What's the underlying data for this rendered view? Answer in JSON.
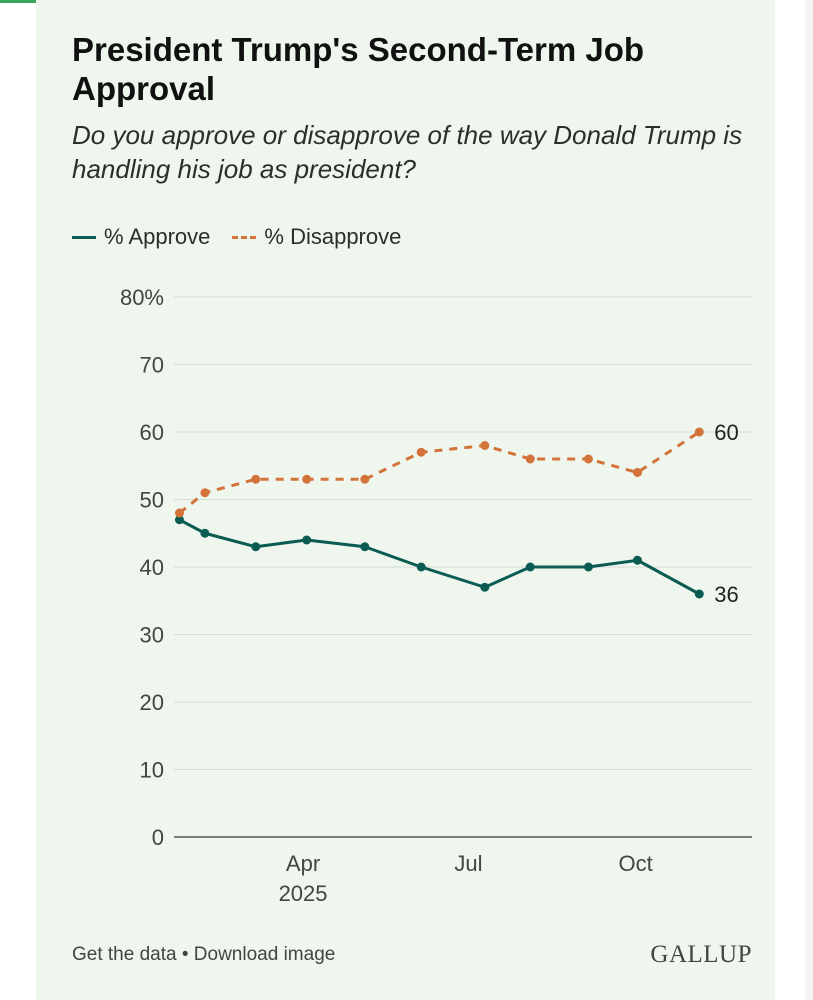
{
  "header": {
    "title": "President Trump's Second-Term Job Approval",
    "subtitle": "Do you approve or disapprove of the way Donald Trump is handling his job as president?"
  },
  "legend": {
    "approve": "% Approve",
    "disapprove": "% Disapprove"
  },
  "footer": {
    "get_data": "Get the data",
    "separator": "•",
    "download": "Download image",
    "logo": "GALLUP"
  },
  "colors": {
    "approve": "#0a5c52",
    "disapprove": "#d3733a",
    "grid": "#d6dcd6",
    "axis": "#555555"
  },
  "chart_data": {
    "type": "line",
    "ylim": [
      0,
      80
    ],
    "y_ticks": [
      0,
      10,
      20,
      30,
      40,
      50,
      60,
      70,
      80
    ],
    "y_tick_labels": [
      "0",
      "10",
      "20",
      "30",
      "40",
      "50",
      "60",
      "70",
      "80%"
    ],
    "xlim": [
      "2025-01-20",
      "2025-12-04"
    ],
    "x_ticks": [
      {
        "date": "2025-04-01",
        "label": "Apr",
        "sublabel": "2025"
      },
      {
        "date": "2025-07-01",
        "label": "Jul",
        "sublabel": ""
      },
      {
        "date": "2025-10-01",
        "label": "Oct",
        "sublabel": ""
      }
    ],
    "grid": true,
    "legend_position": "top-left",
    "series": [
      {
        "name": "% Approve",
        "key": "approve",
        "style": "solid",
        "end_label": "36",
        "points": [
          {
            "x": "2025-01-23",
            "y": 47
          },
          {
            "x": "2025-02-06",
            "y": 45
          },
          {
            "x": "2025-03-06",
            "y": 43
          },
          {
            "x": "2025-04-03",
            "y": 44
          },
          {
            "x": "2025-05-05",
            "y": 43
          },
          {
            "x": "2025-06-05",
            "y": 40
          },
          {
            "x": "2025-07-10",
            "y": 37
          },
          {
            "x": "2025-08-04",
            "y": 40
          },
          {
            "x": "2025-09-05",
            "y": 40
          },
          {
            "x": "2025-10-02",
            "y": 41
          },
          {
            "x": "2025-11-05",
            "y": 36
          }
        ]
      },
      {
        "name": "% Disapprove",
        "key": "disapprove",
        "style": "dashed",
        "end_label": "60",
        "points": [
          {
            "x": "2025-01-23",
            "y": 48
          },
          {
            "x": "2025-02-06",
            "y": 51
          },
          {
            "x": "2025-03-06",
            "y": 53
          },
          {
            "x": "2025-04-03",
            "y": 53
          },
          {
            "x": "2025-05-05",
            "y": 53
          },
          {
            "x": "2025-06-05",
            "y": 57
          },
          {
            "x": "2025-07-10",
            "y": 58
          },
          {
            "x": "2025-08-04",
            "y": 56
          },
          {
            "x": "2025-09-05",
            "y": 56
          },
          {
            "x": "2025-10-02",
            "y": 54
          },
          {
            "x": "2025-11-05",
            "y": 60
          }
        ]
      }
    ]
  }
}
